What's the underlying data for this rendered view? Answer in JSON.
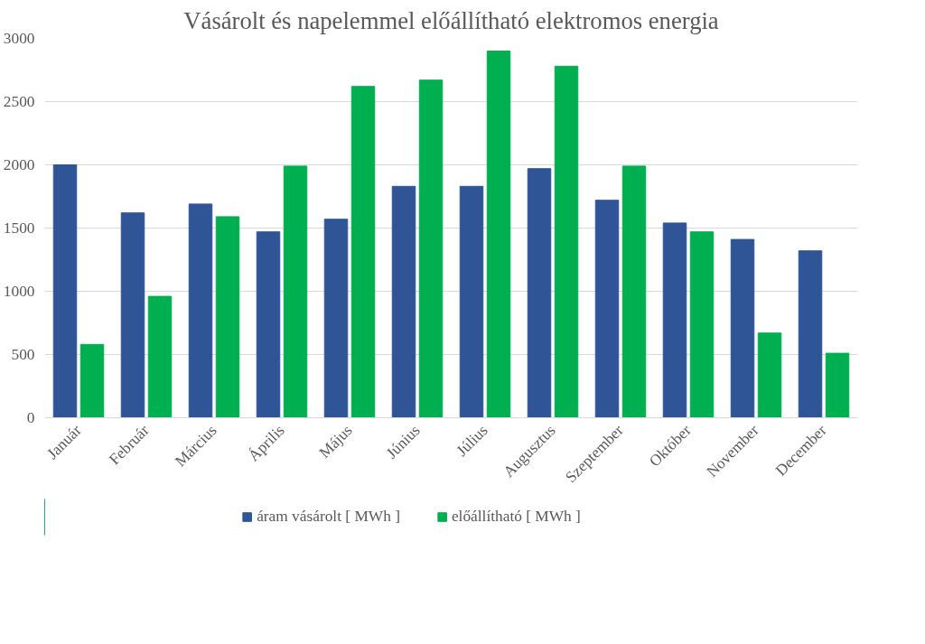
{
  "chart_data": {
    "type": "bar",
    "title": "Vásárolt és napelemmel előállítható elektromos energia",
    "categories": [
      "Január",
      "Február",
      "Március",
      "Április",
      "Május",
      "Június",
      "Július",
      "Augusztus",
      "Szeptember",
      "Október",
      "November",
      "December"
    ],
    "series": [
      {
        "name": "áram vásárolt [ MWh ]",
        "color": "#2f5597",
        "values": [
          2000,
          1620,
          1690,
          1470,
          1570,
          1830,
          1830,
          1970,
          1720,
          1540,
          1410,
          1320
        ]
      },
      {
        "name": "előállítható [ MWh ]",
        "color": "#00b050",
        "values": [
          580,
          960,
          1590,
          1990,
          2620,
          2670,
          2900,
          2780,
          1990,
          1470,
          670,
          510
        ]
      }
    ],
    "ylim": [
      0,
      3000
    ],
    "yticks": [
      0,
      500,
      1000,
      1500,
      2000,
      2500,
      3000
    ],
    "grid": "y",
    "legend": "bottom"
  }
}
